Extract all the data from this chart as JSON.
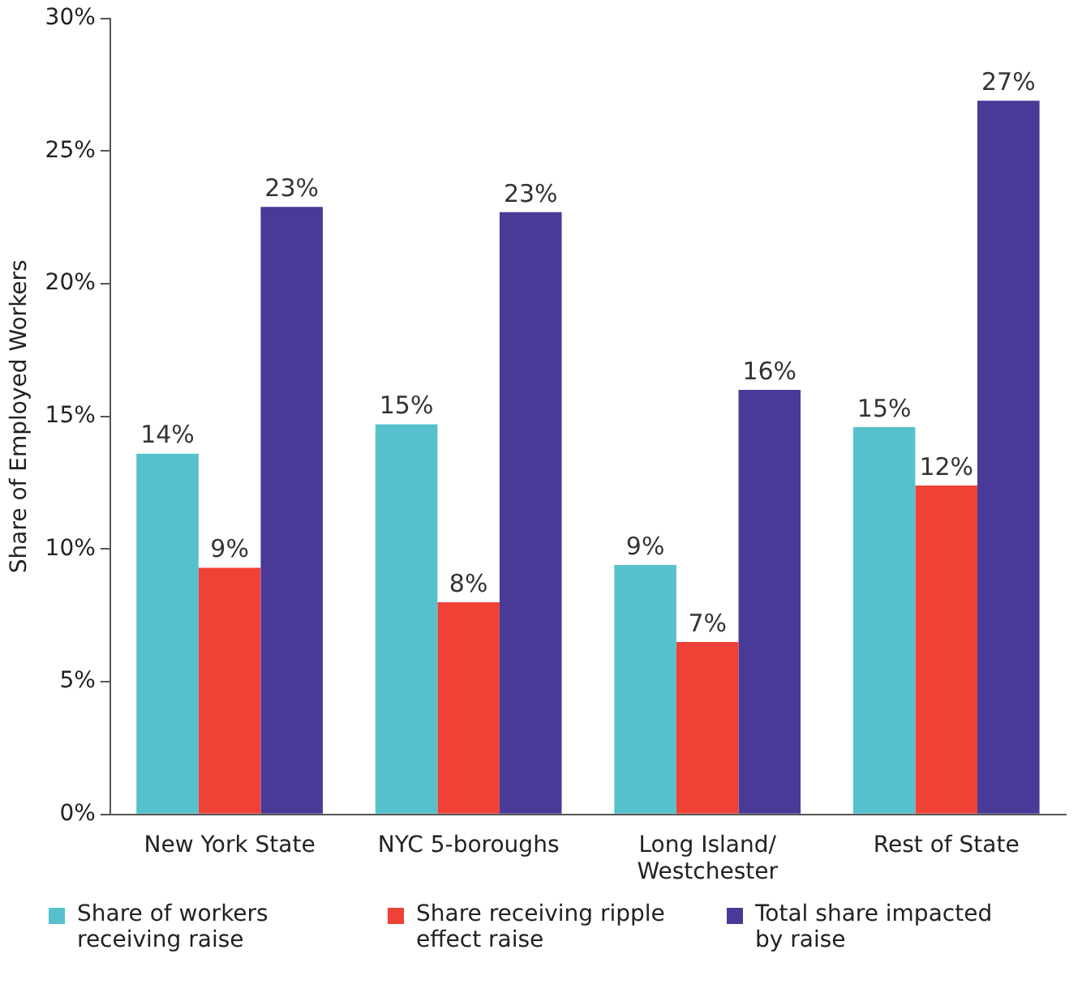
{
  "chart_data": {
    "type": "bar",
    "ylabel": "Share of Employed Workers",
    "categories": [
      "New York State",
      "NYC 5-boroughs",
      "Long Island/ Westchester",
      "Rest of State"
    ],
    "series": [
      {
        "name": "Share of workers receiving raise",
        "color": "#56c1cc",
        "values": [
          13.6,
          14.7,
          9.4,
          14.6
        ],
        "value_labels": [
          "14%",
          "15%",
          "9%",
          "15%"
        ]
      },
      {
        "name": "Share receiving ripple effect raise",
        "color": "#ef4136",
        "values": [
          9.3,
          8.0,
          6.5,
          12.4
        ],
        "value_labels": [
          "9%",
          "8%",
          "7%",
          "12%"
        ]
      },
      {
        "name": "Total share impacted by raise",
        "color": "#4a3a97",
        "values": [
          22.9,
          22.7,
          16.0,
          26.9
        ],
        "value_labels": [
          "23%",
          "23%",
          "16%",
          "27%"
        ]
      }
    ],
    "ylim": [
      0,
      30
    ],
    "yticks": [
      {
        "value": 0,
        "label": "0%"
      },
      {
        "value": 5,
        "label": "5%"
      },
      {
        "value": 10,
        "label": "10%"
      },
      {
        "value": 15,
        "label": "15%"
      },
      {
        "value": 20,
        "label": "20%"
      },
      {
        "value": 25,
        "label": "25%"
      },
      {
        "value": 30,
        "label": "30%"
      }
    ],
    "grid": false,
    "legend": "bottom"
  }
}
